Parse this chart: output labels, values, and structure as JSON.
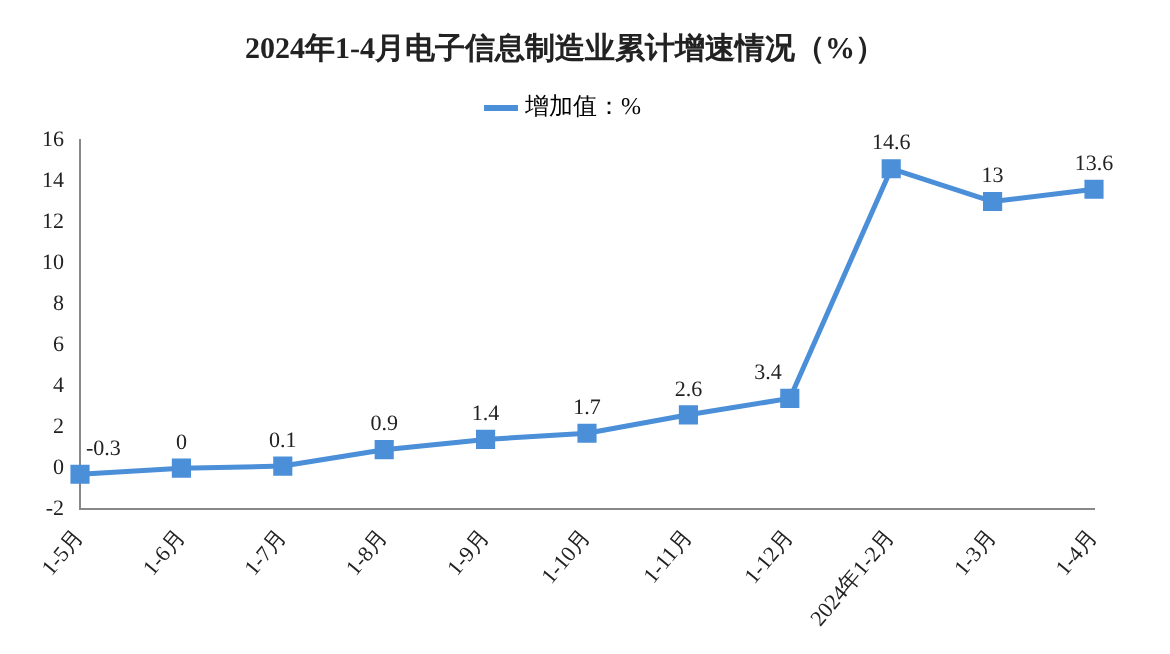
{
  "chart_data": {
    "type": "line",
    "title": "2024年1-4月电子信息制造业累计增速情况（%）",
    "categories": [
      "1-5月",
      "1-6月",
      "1-7月",
      "1-8月",
      "1-9月",
      "1-10月",
      "1-11月",
      "1-12月",
      "2024年1-2月",
      "1-3月",
      "1-4月"
    ],
    "series": [
      {
        "name": "增加值：%",
        "color": "#4a8fd8",
        "values": [
          -0.3,
          0,
          0.1,
          0.9,
          1.4,
          1.7,
          2.6,
          3.4,
          14.6,
          13,
          13.6
        ]
      }
    ],
    "ylim": [
      -2,
      16
    ],
    "yticks": [
      -2,
      0,
      2,
      4,
      6,
      8,
      10,
      12,
      14,
      16
    ],
    "grid": false,
    "legend": "top",
    "marker": "square",
    "line_style": "solid",
    "data_labels": true
  }
}
